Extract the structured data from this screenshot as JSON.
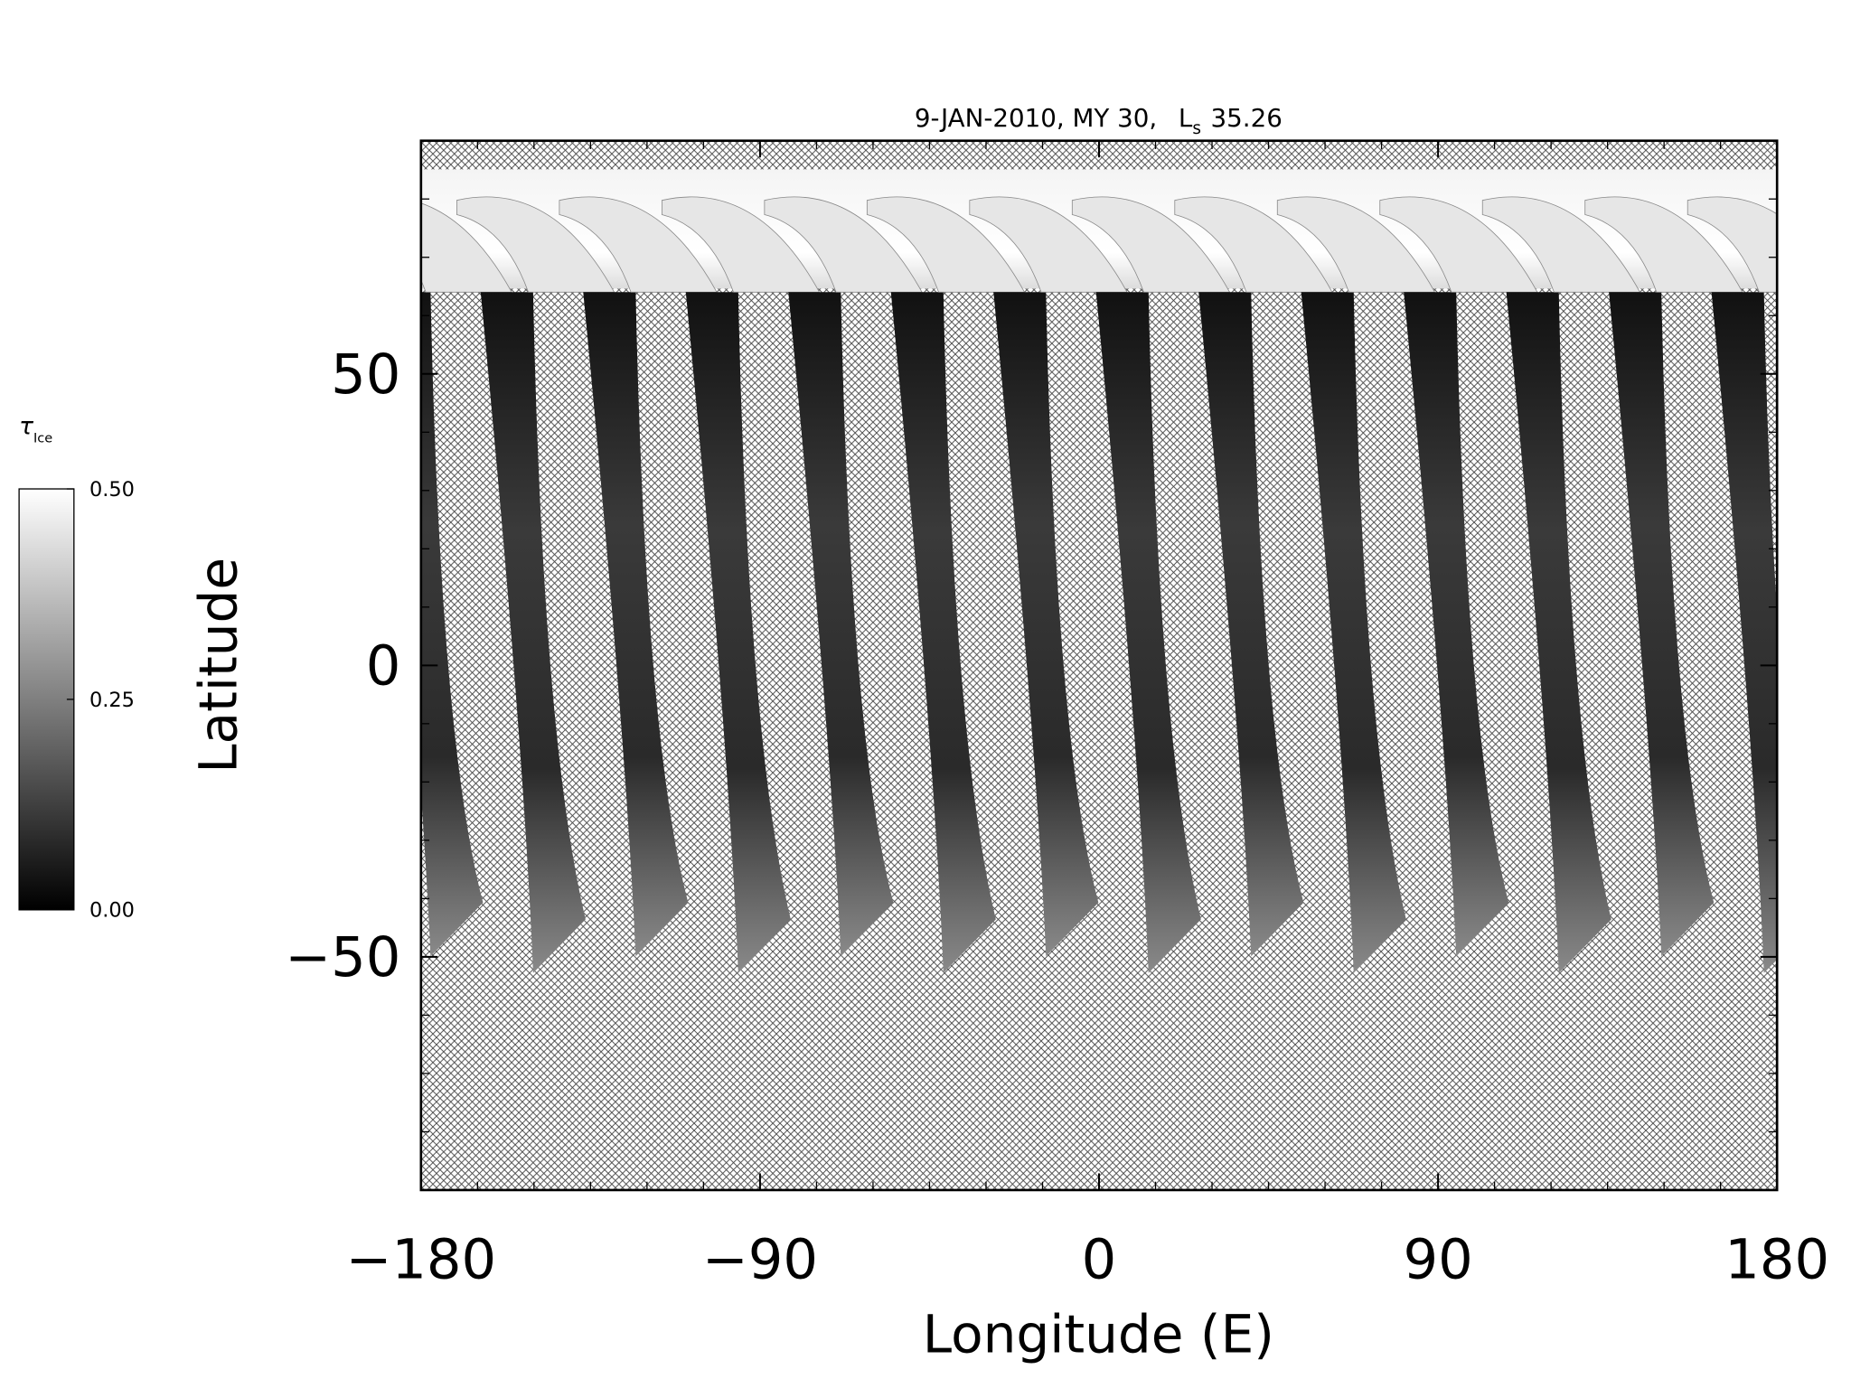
{
  "chart_data": {
    "type": "map",
    "title": "9-JAN-2010, MY 30,",
    "solar_longitude_symbol": "L",
    "solar_longitude_subscript": "s",
    "solar_longitude": "35.26",
    "x_label": "Longitude (E)",
    "y_label": "Latitude",
    "xlim": [
      -180,
      180
    ],
    "ylim": [
      -90,
      90
    ],
    "xticks": [
      {
        "value": -180,
        "label": "−180"
      },
      {
        "value": -90,
        "label": "−90"
      },
      0,
      90,
      180
    ],
    "yticks": [
      {
        "value": -50,
        "label": "−50"
      },
      0,
      50
    ],
    "xminor": 15,
    "yminor": 10,
    "colorbar": {
      "label": "τ",
      "label_subscript": "Ice",
      "range": [
        0,
        0.5
      ],
      "ticks": [
        {
          "value": 0,
          "label": "0.00"
        },
        {
          "value": 0.25,
          "label": "0.25"
        },
        {
          "value": 0.5,
          "label": "0.50"
        }
      ],
      "colors": [
        "#000000",
        "#ffffff"
      ]
    }
  }
}
